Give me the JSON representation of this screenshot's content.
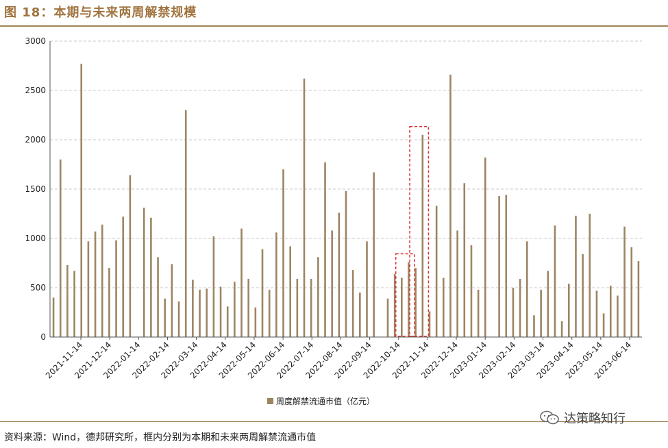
{
  "figure": {
    "title": "图 18：本期与未来两周解禁规模",
    "source": "资料来源：Wind，德邦研究所，框内分别为本期和未来两周解禁流通市值",
    "watermark": "达策略知行"
  },
  "colors": {
    "bar": "#9c8562",
    "grid": "#c8c8c8",
    "axis": "#555555",
    "highlight_box": "#e03030",
    "title": "#a0733f"
  },
  "chart_data": {
    "type": "bar",
    "title": "",
    "xlabel": "",
    "ylabel": "",
    "ylim": [
      0,
      3000
    ],
    "yticks": [
      0,
      500,
      1000,
      1500,
      2000,
      2500,
      3000
    ],
    "grid": "horizontal dashed",
    "legend_position": "bottom-center",
    "x_tick_labels": [
      "2021-11-14",
      "2021-12-14",
      "2022-01-14",
      "2022-02-14",
      "2022-03-14",
      "2022-04-14",
      "2022-05-14",
      "2022-06-14",
      "2022-07-14",
      "2022-08-14",
      "2022-09-14",
      "2022-10-14",
      "2022-11-14",
      "2022-12-14",
      "2023-01-14",
      "2023-02-14",
      "2023-03-14",
      "2023-04-14",
      "2023-05-14",
      "2023-06-14"
    ],
    "series": [
      {
        "name": "周度解禁流通市值（亿元）",
        "values": [
          400,
          1800,
          730,
          670,
          2770,
          970,
          1070,
          1140,
          700,
          980,
          1220,
          1640,
          0,
          1310,
          1210,
          810,
          390,
          740,
          360,
          2300,
          580,
          480,
          490,
          1020,
          510,
          310,
          560,
          1100,
          590,
          300,
          890,
          480,
          1060,
          1700,
          920,
          590,
          2620,
          590,
          810,
          1770,
          1080,
          1260,
          1480,
          680,
          450,
          970,
          1670,
          0,
          390,
          640,
          600,
          760,
          700,
          2050,
          260,
          1330,
          600,
          2660,
          1080,
          1560,
          930,
          480,
          1820,
          0,
          1430,
          1440,
          500,
          590,
          970,
          220,
          480,
          670,
          1130,
          160,
          540,
          1230,
          840,
          1250,
          470,
          240,
          520,
          420,
          1120,
          910,
          770
        ]
      }
    ],
    "highlight_boxes": [
      {
        "label": "本期",
        "from_index": 50,
        "to_index": 51
      },
      {
        "label": "未来两周",
        "from_index": 52,
        "to_index": 53
      }
    ]
  }
}
